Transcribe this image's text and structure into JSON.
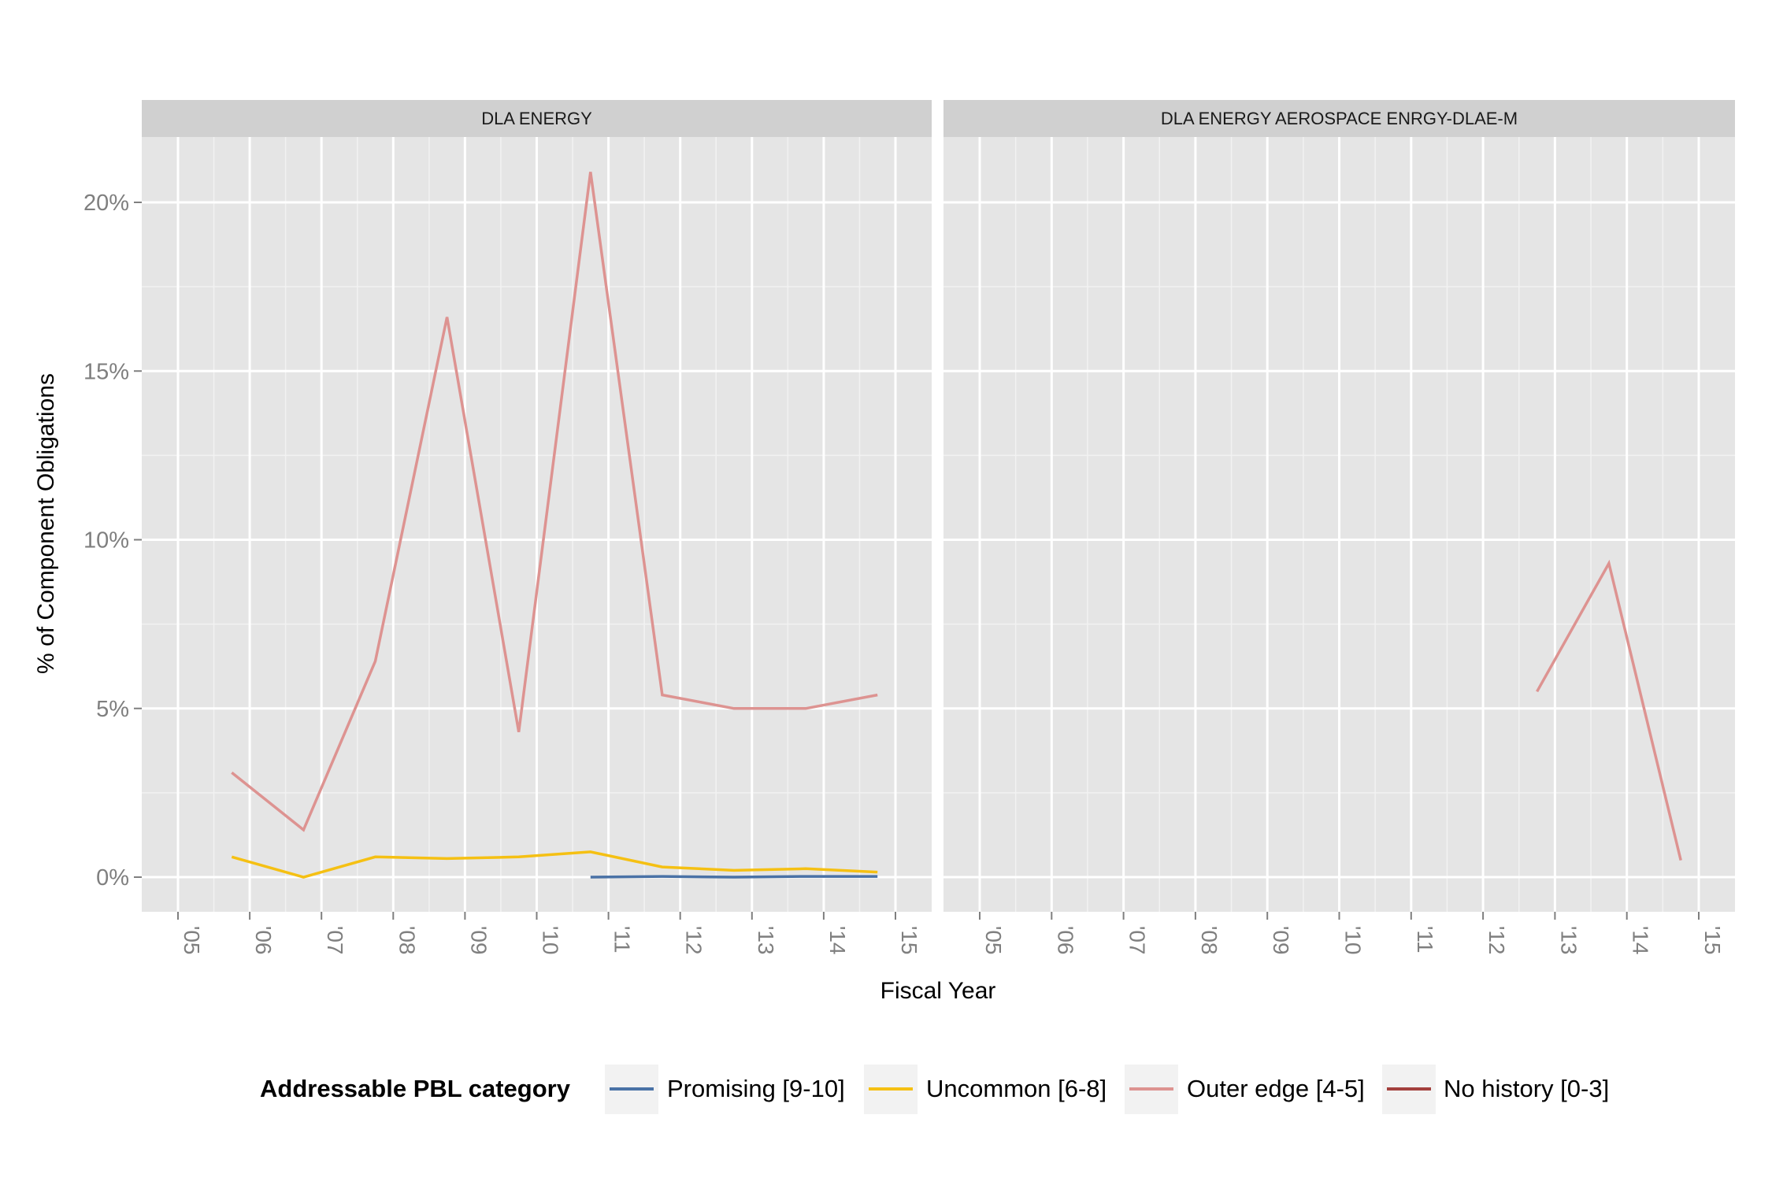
{
  "chart_data": {
    "type": "line",
    "xlabel": "Fiscal Year",
    "ylabel": "% of Component Obligations",
    "xlim": [
      2005,
      2015
    ],
    "ylim": [
      -1,
      22
    ],
    "x_ticks": [
      "'05",
      "'06",
      "'07",
      "'08",
      "'09",
      "'10",
      "'11",
      "'12",
      "'13",
      "'14",
      "'15"
    ],
    "y_ticks": [
      "0%",
      "5%",
      "10%",
      "15%",
      "20%"
    ],
    "y_tick_values": [
      0,
      5,
      10,
      15,
      20
    ],
    "grid": true,
    "legend": {
      "title": "Addressable PBL category",
      "position": "bottom",
      "entries": [
        {
          "label": "Promising [9-10]",
          "color": "#4a72a6"
        },
        {
          "label": "Uncommon [6-8]",
          "color": "#f5c013"
        },
        {
          "label": "Outer edge [4-5]",
          "color": "#dd9391"
        },
        {
          "label": "No history [0-3]",
          "color": "#a3403d"
        }
      ]
    },
    "panels": [
      {
        "title": "DLA ENERGY",
        "series": [
          {
            "name": "Outer edge [4-5]",
            "color": "#dd9391",
            "x": [
              2005.75,
              2006.75,
              2007.75,
              2008.75,
              2009.75,
              2010.75,
              2011.75,
              2012.75,
              2013.75,
              2014.75
            ],
            "y": [
              3.1,
              1.4,
              6.4,
              16.6,
              4.3,
              20.9,
              5.4,
              5.0,
              5.0,
              5.4
            ]
          },
          {
            "name": "Uncommon [6-8]",
            "color": "#f5c013",
            "x": [
              2005.75,
              2006.75,
              2007.75,
              2008.75,
              2009.75,
              2010.75,
              2011.75,
              2012.75,
              2013.75,
              2014.75
            ],
            "y": [
              0.6,
              0.0,
              0.6,
              0.55,
              0.6,
              0.75,
              0.3,
              0.2,
              0.25,
              0.15
            ]
          },
          {
            "name": "Promising [9-10]",
            "color": "#4a72a6",
            "x": [
              2010.75,
              2011.75,
              2012.75,
              2013.75,
              2014.75
            ],
            "y": [
              0.0,
              0.02,
              0.0,
              0.02,
              0.02
            ]
          }
        ]
      },
      {
        "title": "DLA ENERGY AEROSPACE ENRGY-DLAE-M",
        "series": [
          {
            "name": "Outer edge [4-5]",
            "color": "#dd9391",
            "x": [
              2012.75,
              2013.75,
              2014.75
            ],
            "y": [
              5.5,
              9.3,
              0.5
            ]
          }
        ]
      }
    ]
  }
}
